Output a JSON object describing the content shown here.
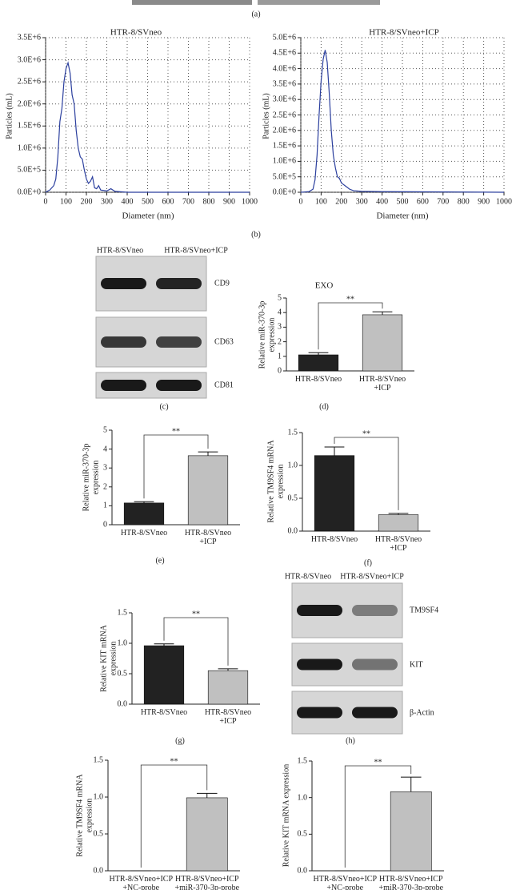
{
  "panel_labels": [
    "(a)",
    "(b)",
    "(c)",
    "(d)",
    "(e)",
    "(f)",
    "(g)",
    "(h)"
  ],
  "blots": [
    {
      "columns": [
        "HTR-8/SVneo",
        "HTR-8/SVneo+ICP"
      ],
      "bands": [
        "CD9",
        "CD63",
        "CD81"
      ]
    },
    {
      "columns": [
        "HTR-8/SVneo",
        "HTR-8/SVneo+ICP"
      ],
      "bands": [
        "TM9SF4",
        "KIT",
        "β-Actin"
      ]
    }
  ],
  "chart_data": [
    {
      "type": "line",
      "title": "HTR-8/SVneo",
      "xlabel": "Diameter (nm)",
      "ylabel": [
        "Particles (mL)"
      ],
      "color": "#2b3f9e",
      "grid": true,
      "x": [
        0,
        20,
        40,
        50,
        60,
        70,
        80,
        90,
        100,
        110,
        120,
        130,
        140,
        150,
        160,
        170,
        180,
        190,
        200,
        210,
        220,
        230,
        240,
        250,
        260,
        270,
        300,
        320,
        340,
        400,
        500,
        1000
      ],
      "values": [
        0,
        50000,
        150000,
        300000,
        800000,
        1600000,
        1900000,
        2500000,
        2800000,
        2930000,
        2700000,
        2200000,
        2000000,
        1400000,
        1000000,
        800000,
        750000,
        500000,
        300000,
        200000,
        250000,
        350000,
        100000,
        80000,
        150000,
        50000,
        30000,
        80000,
        20000,
        0,
        0,
        0
      ],
      "xlim": [
        0,
        1000
      ],
      "xticks": [
        0,
        100,
        200,
        300,
        400,
        500,
        600,
        700,
        800,
        900,
        1000
      ],
      "ylim": [
        0,
        3500000
      ],
      "yticks": [
        {
          "value": 0,
          "label": "0.0E+0"
        },
        {
          "value": 500000,
          "label": "5.0E+5"
        },
        {
          "value": 1000000,
          "label": "1.0E+6"
        },
        {
          "value": 1500000,
          "label": "1.5E+6"
        },
        {
          "value": 2000000,
          "label": "2.0E+6"
        },
        {
          "value": 2500000,
          "label": "2.5E+6"
        },
        {
          "value": 3000000,
          "label": "3.0E+6"
        },
        {
          "value": 3500000,
          "label": "3.5E+6"
        }
      ]
    },
    {
      "type": "line",
      "title": "HTR-8/SVneo+ICP",
      "xlabel": "Diameter (nm)",
      "ylabel": [
        "Particles (mL)"
      ],
      "color": "#2b3f9e",
      "grid": true,
      "x": [
        0,
        40,
        60,
        70,
        80,
        90,
        100,
        110,
        120,
        130,
        140,
        150,
        160,
        170,
        180,
        190,
        200,
        220,
        240,
        260,
        300,
        400,
        1000
      ],
      "values": [
        0,
        20000,
        100000,
        400000,
        1200000,
        2500000,
        3600000,
        4300000,
        4600000,
        4200000,
        3200000,
        2000000,
        1200000,
        800000,
        500000,
        450000,
        300000,
        200000,
        100000,
        50000,
        30000,
        20000,
        0
      ],
      "xlim": [
        0,
        1000
      ],
      "xticks": [
        0,
        100,
        200,
        300,
        400,
        500,
        600,
        700,
        800,
        900,
        1000
      ],
      "ylim": [
        0,
        5000000
      ],
      "yticks": [
        {
          "value": 0,
          "label": "0.0E+0"
        },
        {
          "value": 500000,
          "label": "5.0E+5"
        },
        {
          "value": 1000000,
          "label": "1.0E+6"
        },
        {
          "value": 1500000,
          "label": "1.5E+6"
        },
        {
          "value": 2000000,
          "label": "2.0E+6"
        },
        {
          "value": 2500000,
          "label": "2.5E+6"
        },
        {
          "value": 3000000,
          "label": "3.0E+6"
        },
        {
          "value": 3500000,
          "label": "3.5E+6"
        },
        {
          "value": 4000000,
          "label": "4.0E+6"
        },
        {
          "value": 4500000,
          "label": "4.5E+6"
        },
        {
          "value": 5000000,
          "label": "5.0E+6"
        }
      ]
    },
    {
      "type": "bar",
      "title": "EXO",
      "ylabel": [
        "Relative miR-370-3p",
        "expression"
      ],
      "annotation": "**",
      "categories": [
        "HTR-8/SVneo",
        "HTR-8/SVneo\n+ICP"
      ],
      "values": [
        1.1,
        3.85
      ],
      "errors": [
        0.15,
        0.2
      ],
      "colors": [
        "#222222",
        "#c0c0c0"
      ],
      "ylim": [
        0,
        5
      ],
      "yticks": [
        0,
        1,
        2,
        3,
        4,
        5
      ]
    },
    {
      "type": "bar",
      "ylabel": [
        "Relative miR-370-3p",
        "expression"
      ],
      "annotation": "**",
      "categories": [
        "HTR-8/SVneo",
        "HTR-8/SVneo\n+ICP"
      ],
      "values": [
        1.15,
        3.65
      ],
      "errors": [
        0.07,
        0.2
      ],
      "colors": [
        "#222222",
        "#c0c0c0"
      ],
      "ylim": [
        0,
        5
      ],
      "yticks": [
        0,
        1,
        2,
        3,
        4,
        5
      ]
    },
    {
      "type": "bar",
      "ylabel": [
        "Relative TM9SF4 mRNA",
        "expression"
      ],
      "annotation": "**",
      "categories": [
        "HTR-8/SVneo",
        "HTR-8/SVneo\n+ICP"
      ],
      "values": [
        1.15,
        0.25
      ],
      "errors": [
        0.13,
        0.02
      ],
      "colors": [
        "#222222",
        "#c0c0c0"
      ],
      "ylim": [
        0,
        1.5
      ],
      "yticks": [
        {
          "value": 0,
          "label": "0.0"
        },
        0.5,
        {
          "value": 1,
          "label": "1.0"
        },
        1.5
      ]
    },
    {
      "type": "bar",
      "ylabel": [
        "Relative KIT mRNA",
        "expression"
      ],
      "annotation": "**",
      "categories": [
        "HTR-8/SVneo",
        "HTR-8/SVneo\n+ICP"
      ],
      "values": [
        0.96,
        0.55
      ],
      "errors": [
        0.03,
        0.03
      ],
      "colors": [
        "#222222",
        "#c0c0c0"
      ],
      "ylim": [
        0,
        1.5
      ],
      "yticks": [
        {
          "value": 0,
          "label": "0.0"
        },
        0.5,
        {
          "value": 1,
          "label": "1.0"
        },
        1.5
      ]
    },
    {
      "type": "bar",
      "ylabel": [
        "Relative TM9SF4 mRNA",
        "expression"
      ],
      "annotation": "**",
      "categories": [
        "HTR-8/SVneo+ICP\n+NC-probe",
        "HTR-8/SVneo+ICP\n+miR-370-3p-probe"
      ],
      "values": [
        0,
        0.99
      ],
      "errors": [
        0,
        0.06
      ],
      "colors": [
        "#222222",
        "#c0c0c0"
      ],
      "ylim": [
        0,
        1.5
      ],
      "yticks": [
        {
          "value": 0,
          "label": "0.0"
        },
        0.5,
        {
          "value": 1,
          "label": "1.0"
        },
        1.5
      ]
    },
    {
      "type": "bar",
      "ylabel": [
        "Relative KIT mRNA expression"
      ],
      "annotation": "**",
      "categories": [
        "HTR-8/SVneo+ICP\n+NC-probe",
        "HTR-8/SVneo+ICP\n+miR-370-3p-probe"
      ],
      "values": [
        0,
        1.08
      ],
      "errors": [
        0,
        0.2
      ],
      "colors": [
        "#222222",
        "#c0c0c0"
      ],
      "ylim": [
        0,
        1.5
      ],
      "yticks": [
        {
          "value": 0,
          "label": "0.0"
        },
        0.5,
        {
          "value": 1,
          "label": "1.0"
        },
        1.5
      ]
    }
  ]
}
